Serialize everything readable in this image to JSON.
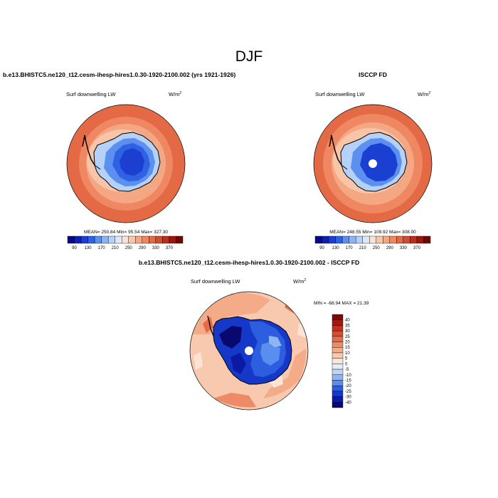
{
  "page_title": "DJF",
  "colors": {
    "main_scale": [
      "#08088c",
      "#0d1fb4",
      "#1a3fd1",
      "#2e62e3",
      "#5b8ff0",
      "#8ab4f5",
      "#b5d1f7",
      "#dce8f7",
      "#fbe3d3",
      "#f8c5a8",
      "#f4a783",
      "#ee8762",
      "#e46a46",
      "#d44b2f",
      "#bd2e1d",
      "#9b1710",
      "#6e0808"
    ],
    "diff_scale": [
      "#08086e",
      "#0a1aa3",
      "#1638c8",
      "#2d5ee0",
      "#5a8eee",
      "#8db5f4",
      "#bcd5f7",
      "#e3edf8",
      "#fbe4d6",
      "#f8c9ae",
      "#f4ab88",
      "#ee8b66",
      "#e66b48",
      "#d84c30",
      "#c2301f",
      "#a01a12",
      "#780a08"
    ]
  },
  "chart_data": [
    {
      "type": "heatmap",
      "projection": "south-polar-stereographic",
      "title": "b.e13.BHISTC5.ne120_t12.cesm-ihesp-hires1.0.30-1920-2100.002 (yrs 1921-1926)",
      "variable": "Surf downwelling LW",
      "units_base": "W/m",
      "units_exp": "2",
      "stats": "MEAN= 250.84  Min=  95.54  Max= 327.30",
      "mean": 250.84,
      "min": 95.54,
      "max": 327.3,
      "colorbar_ticks": [
        "90",
        "130",
        "170",
        "210",
        "250",
        "290",
        "330",
        "370"
      ],
      "levels_range": [
        90,
        370
      ]
    },
    {
      "type": "heatmap",
      "projection": "south-polar-stereographic",
      "title": "ISCCP FD",
      "variable": "Surf downwelling LW",
      "units_base": "W/m",
      "units_exp": "2",
      "stats": "MEAN= 248.55  Min= 109.92  Max= 308.00",
      "mean": 248.55,
      "min": 109.92,
      "max": 308.0,
      "colorbar_ticks": [
        "90",
        "130",
        "170",
        "210",
        "250",
        "290",
        "330",
        "370"
      ],
      "levels_range": [
        90,
        370
      ]
    },
    {
      "type": "heatmap",
      "projection": "south-polar-stereographic",
      "title": "b.e13.BHISTC5.ne120_t12.cesm-ihesp-hires1.0.30-1920-2100.002 - ISCCP FD",
      "variable": "Surf downwelling LW",
      "units_base": "W/m",
      "units_exp": "2",
      "stats": "MIN = -68.94 MAX =  21.39",
      "min": -68.94,
      "max": 21.39,
      "colorbar_ticks": [
        "40",
        "35",
        "30",
        "25",
        "20",
        "15",
        "10",
        "5",
        "0",
        "-5",
        "-10",
        "-15",
        "-20",
        "-25",
        "-30",
        "-40"
      ],
      "levels_range": [
        -40,
        40
      ]
    }
  ]
}
